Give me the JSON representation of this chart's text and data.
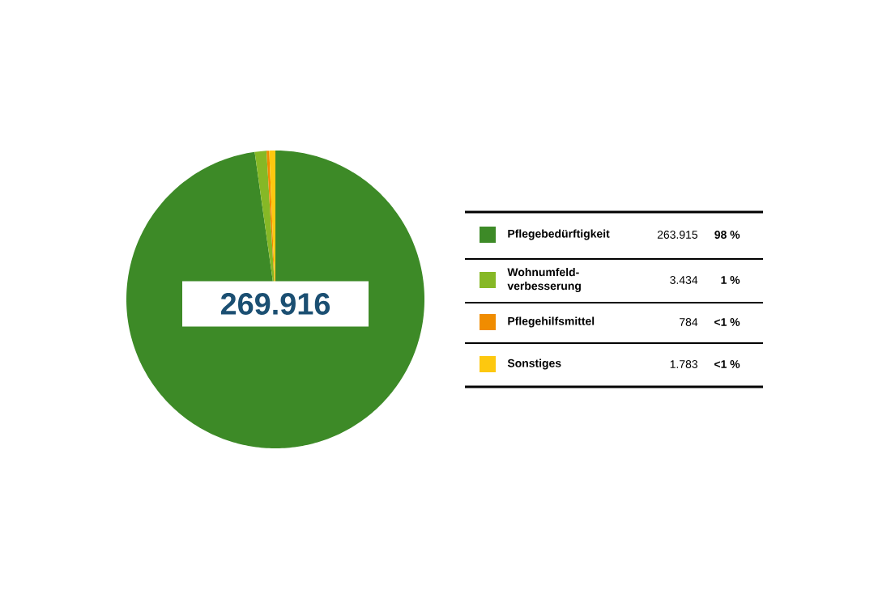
{
  "chart_data": {
    "type": "pie",
    "categories": [
      "Pflegebedürftigkeit",
      "Wohnumfeld-verbesserung",
      "Pflegehilfsmittel",
      "Sonstiges"
    ],
    "values": [
      263915,
      3434,
      784,
      1783
    ],
    "colors": [
      "#3d8a27",
      "#86b826",
      "#f08c00",
      "#fdc80f"
    ],
    "value_labels": [
      "263.915",
      "3.434",
      "784",
      "1.783"
    ],
    "annotations": [
      "269.916",
      "98 %",
      "1 %",
      "<1 %",
      "<1 %"
    ],
    "legend": "right"
  }
}
